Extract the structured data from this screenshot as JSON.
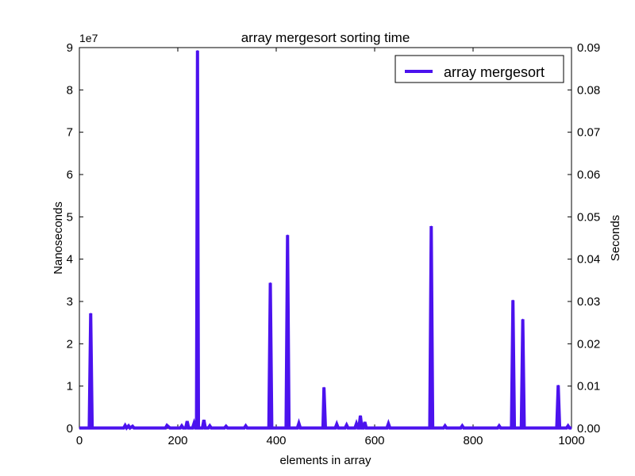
{
  "chart_data": {
    "type": "line",
    "title": "array mergesort sorting time",
    "xlabel": "elements in array",
    "ylabel": "Nanoseconds",
    "y2label": "Seconds",
    "y_offset_label": "1e7",
    "xlim": [
      0,
      1000
    ],
    "ylim": [
      0,
      9
    ],
    "y2lim": [
      0,
      0.09
    ],
    "xticks": [
      "0",
      "200",
      "400",
      "600",
      "800",
      "1000"
    ],
    "yticks": [
      "0",
      "1",
      "2",
      "3",
      "4",
      "5",
      "6",
      "7",
      "8",
      "9"
    ],
    "y2ticks": [
      "0.00",
      "0.01",
      "0.02",
      "0.03",
      "0.04",
      "0.05",
      "0.06",
      "0.07",
      "0.08",
      "0.09"
    ],
    "grid": false,
    "legend_position": "top-right",
    "series": [
      {
        "name": "array mergesort",
        "color": "#4b12ee",
        "points": [
          [
            0,
            0.01
          ],
          [
            20,
            0.01
          ],
          [
            23,
            2.72
          ],
          [
            26,
            0.01
          ],
          [
            90,
            0.01
          ],
          [
            93,
            0.07
          ],
          [
            96,
            0.01
          ],
          [
            100,
            0.06
          ],
          [
            103,
            0.01
          ],
          [
            108,
            0.05
          ],
          [
            111,
            0.01
          ],
          [
            175,
            0.01
          ],
          [
            178,
            0.07
          ],
          [
            181,
            0.04
          ],
          [
            184,
            0.01
          ],
          [
            205,
            0.01
          ],
          [
            208,
            0.06
          ],
          [
            211,
            0.01
          ],
          [
            216,
            0.01
          ],
          [
            219,
            0.17
          ],
          [
            222,
            0.01
          ],
          [
            230,
            0.01
          ],
          [
            233,
            0.12
          ],
          [
            236,
            0.01
          ],
          [
            238,
            0.01
          ],
          [
            240,
            8.93
          ],
          [
            242,
            0.01
          ],
          [
            250,
            0.01
          ],
          [
            253,
            0.2
          ],
          [
            256,
            0.01
          ],
          [
            262,
            0.01
          ],
          [
            265,
            0.06
          ],
          [
            268,
            0.01
          ],
          [
            295,
            0.01
          ],
          [
            298,
            0.05
          ],
          [
            301,
            0.01
          ],
          [
            335,
            0.01
          ],
          [
            338,
            0.06
          ],
          [
            341,
            0.01
          ],
          [
            385,
            0.01
          ],
          [
            388,
            3.44
          ],
          [
            391,
            0.01
          ],
          [
            420,
            0.01
          ],
          [
            423,
            4.57
          ],
          [
            426,
            0.01
          ],
          [
            443,
            0.01
          ],
          [
            446,
            0.12
          ],
          [
            449,
            0.01
          ],
          [
            495,
            0.01
          ],
          [
            497,
            0.97
          ],
          [
            500,
            0.01
          ],
          [
            520,
            0.01
          ],
          [
            523,
            0.1
          ],
          [
            526,
            0.01
          ],
          [
            540,
            0.01
          ],
          [
            543,
            0.08
          ],
          [
            546,
            0.01
          ],
          [
            560,
            0.01
          ],
          [
            563,
            0.11
          ],
          [
            566,
            0.01
          ],
          [
            568,
            0.01
          ],
          [
            571,
            0.3
          ],
          [
            574,
            0.01
          ],
          [
            577,
            0.01
          ],
          [
            580,
            0.15
          ],
          [
            583,
            0.01
          ],
          [
            625,
            0.01
          ],
          [
            628,
            0.11
          ],
          [
            631,
            0.01
          ],
          [
            712,
            0.01
          ],
          [
            715,
            4.78
          ],
          [
            718,
            0.01
          ],
          [
            740,
            0.01
          ],
          [
            743,
            0.06
          ],
          [
            746,
            0.01
          ],
          [
            775,
            0.01
          ],
          [
            778,
            0.06
          ],
          [
            781,
            0.01
          ],
          [
            850,
            0.01
          ],
          [
            853,
            0.06
          ],
          [
            856,
            0.01
          ],
          [
            878,
            0.01
          ],
          [
            881,
            3.03
          ],
          [
            884,
            0.01
          ],
          [
            898,
            0.01
          ],
          [
            901,
            2.58
          ],
          [
            904,
            0.01
          ],
          [
            970,
            0.01
          ],
          [
            973,
            1.02
          ],
          [
            976,
            0.01
          ],
          [
            990,
            0.01
          ],
          [
            993,
            0.06
          ],
          [
            996,
            0.01
          ],
          [
            1000,
            0.01
          ]
        ]
      }
    ]
  }
}
